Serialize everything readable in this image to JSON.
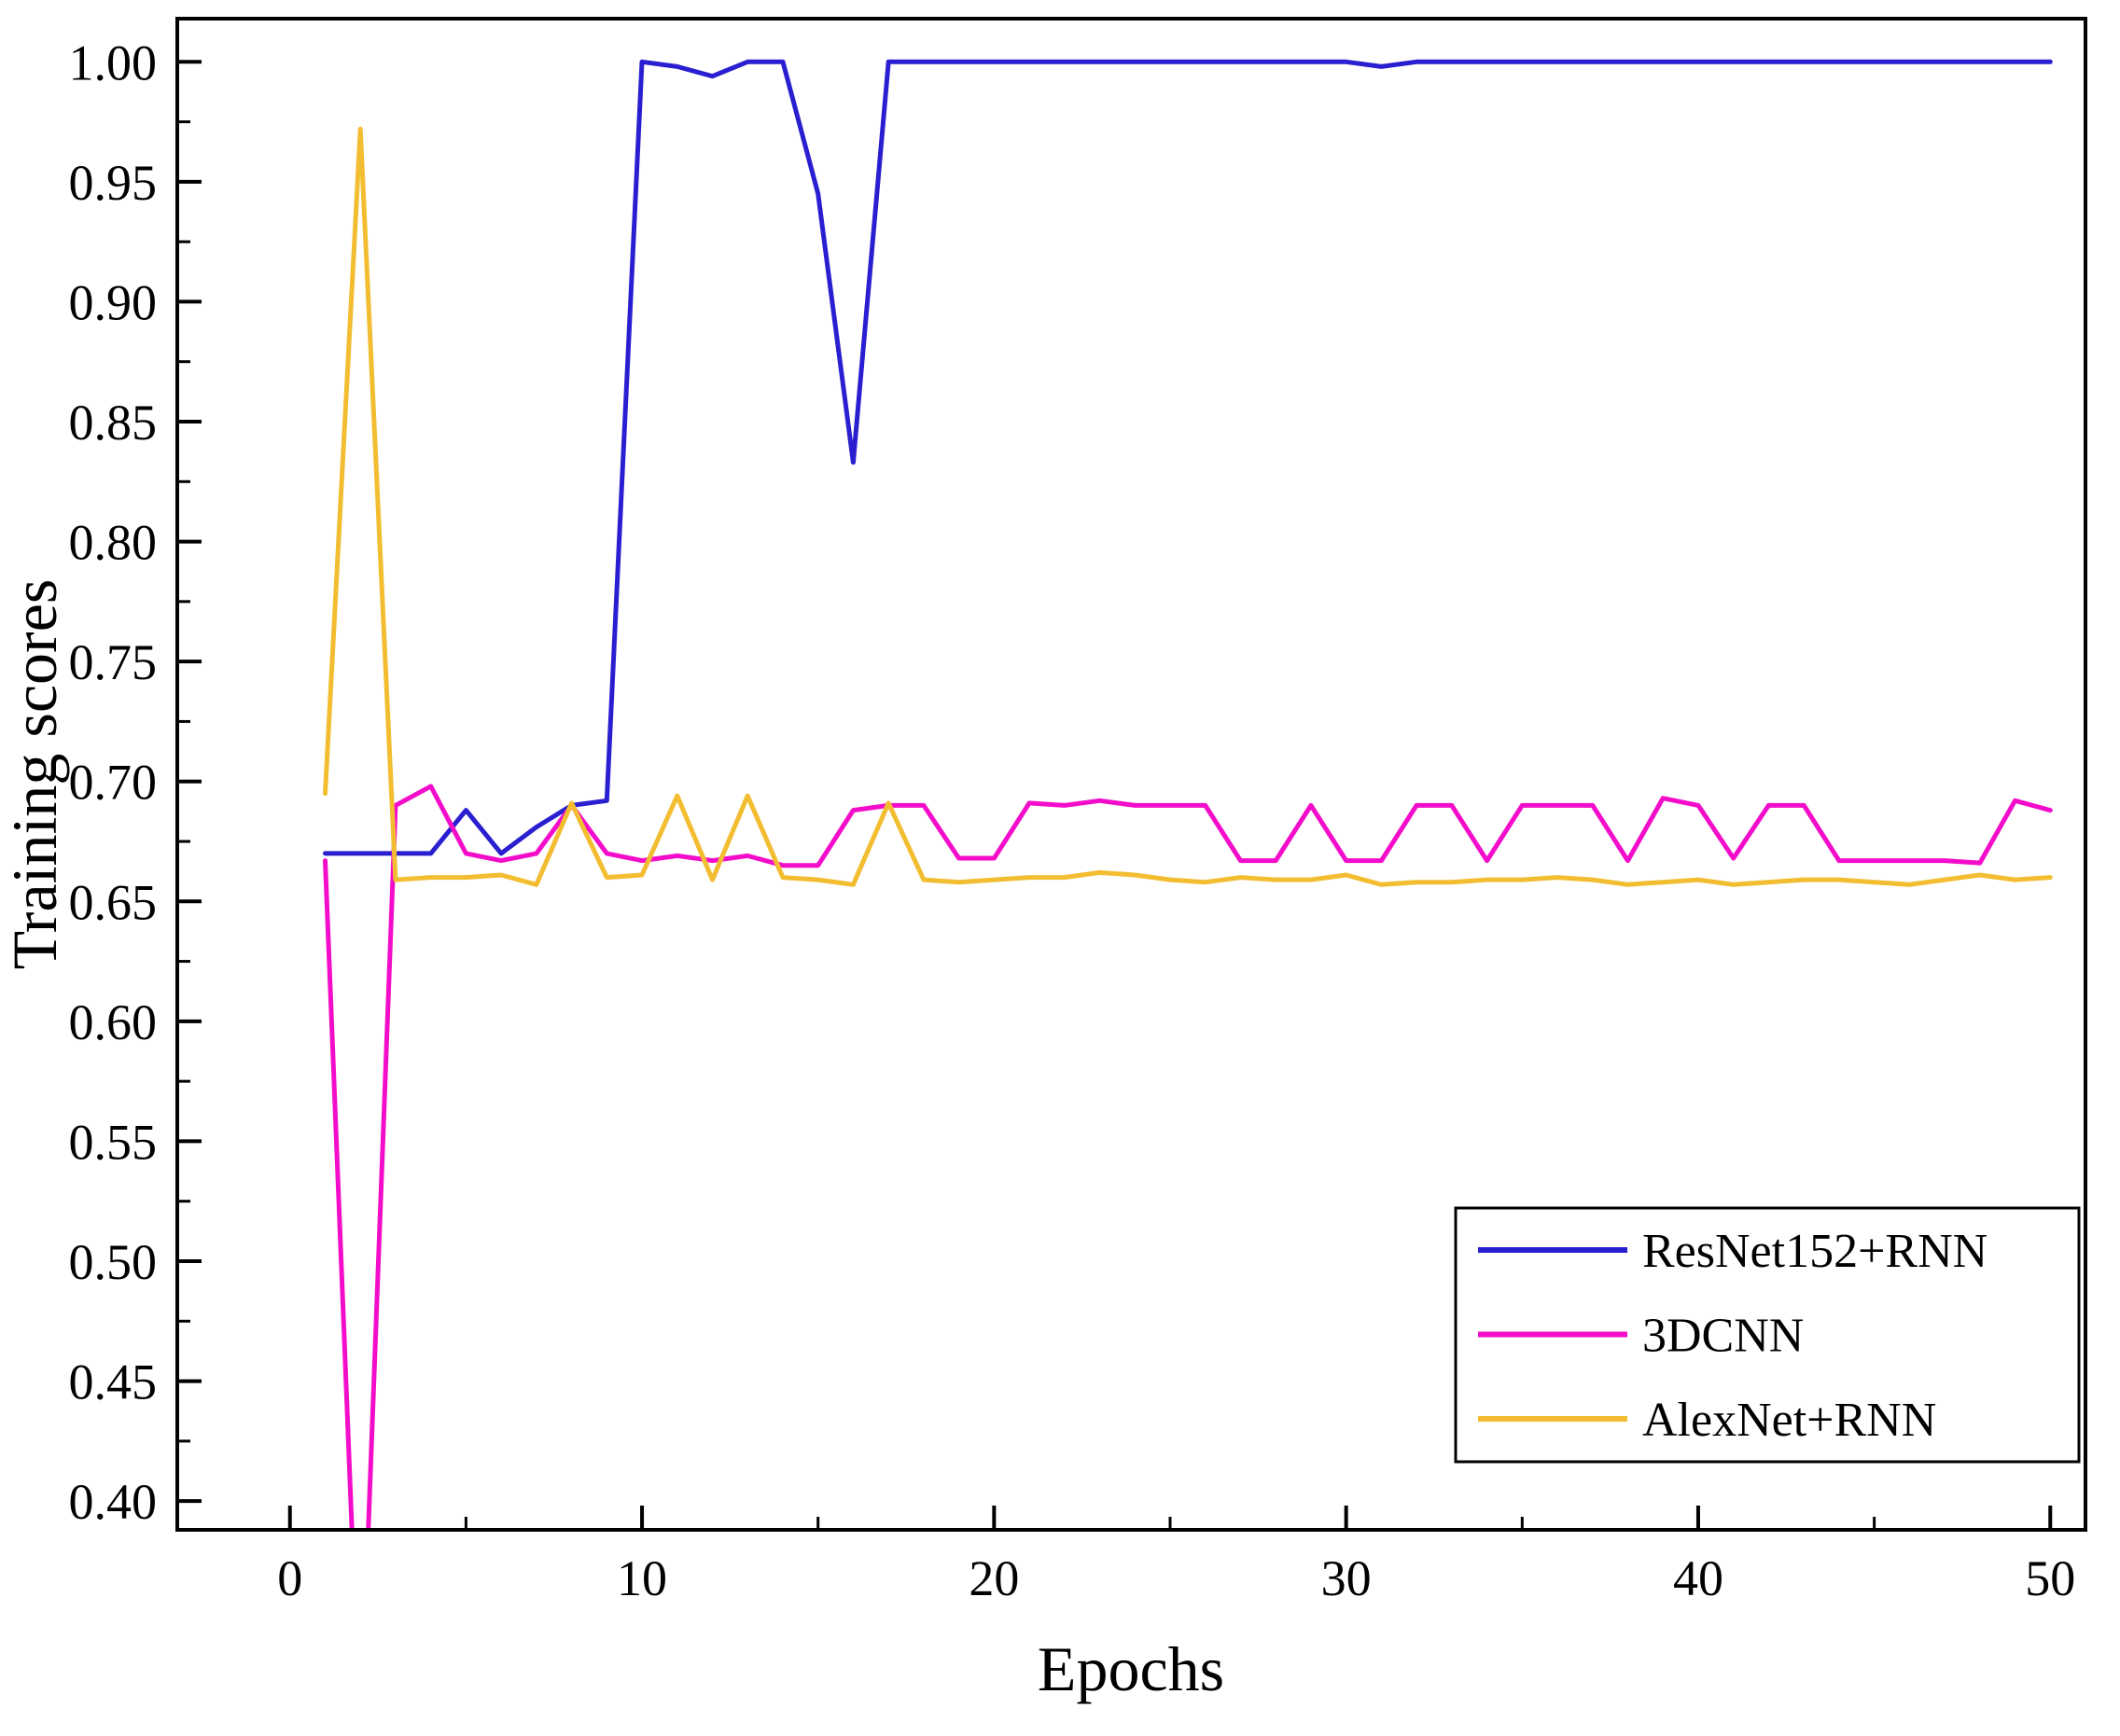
{
  "figure": {
    "background": "#ffffff",
    "axis_color": "#000000"
  },
  "chart_data": {
    "type": "line",
    "title": "",
    "xlabel": "Epochs",
    "ylabel": "Training scores",
    "xlim": [
      -3.2,
      51
    ],
    "ylim": [
      0.388,
      1.018
    ],
    "x_ticks": [
      0,
      10,
      20,
      30,
      40,
      50
    ],
    "x_minor_ticks": [
      5,
      15,
      25,
      35,
      45
    ],
    "y_ticks": [
      0.4,
      0.45,
      0.5,
      0.55,
      0.6,
      0.65,
      0.7,
      0.75,
      0.8,
      0.85,
      0.9,
      0.95,
      1.0
    ],
    "y_minor_ticks": [
      0.425,
      0.475,
      0.525,
      0.575,
      0.625,
      0.675,
      0.725,
      0.775,
      0.825,
      0.875,
      0.925,
      0.975
    ],
    "grid": false,
    "legend_position": "bottom-right",
    "x": [
      1,
      2,
      3,
      4,
      5,
      6,
      7,
      8,
      9,
      10,
      11,
      12,
      13,
      14,
      15,
      16,
      17,
      18,
      19,
      20,
      21,
      22,
      23,
      24,
      25,
      26,
      27,
      28,
      29,
      30,
      31,
      32,
      33,
      34,
      35,
      36,
      37,
      38,
      39,
      40,
      41,
      42,
      43,
      44,
      45,
      46,
      47,
      48,
      49,
      50
    ],
    "series": [
      {
        "name": "ResNet152+RNN",
        "color": "#2a1fd0",
        "values": [
          0.67,
          0.67,
          0.67,
          0.67,
          0.688,
          0.67,
          0.681,
          0.69,
          0.692,
          1.0,
          0.998,
          0.994,
          1.0,
          1.0,
          0.945,
          0.833,
          1.0,
          1.0,
          1.0,
          1.0,
          1.0,
          1.0,
          1.0,
          1.0,
          1.0,
          1.0,
          1.0,
          1.0,
          1.0,
          1.0,
          0.998,
          1.0,
          1.0,
          1.0,
          1.0,
          1.0,
          1.0,
          1.0,
          1.0,
          1.0,
          1.0,
          1.0,
          1.0,
          1.0,
          1.0,
          1.0,
          1.0,
          1.0,
          1.0,
          1.0
        ]
      },
      {
        "name": "3DCNN",
        "color": "#f30dca",
        "values": [
          0.667,
          0.3,
          0.69,
          0.698,
          0.67,
          0.667,
          0.67,
          0.69,
          0.67,
          0.667,
          0.669,
          0.667,
          0.669,
          0.665,
          0.665,
          0.688,
          0.69,
          0.69,
          0.668,
          0.668,
          0.691,
          0.69,
          0.692,
          0.69,
          0.69,
          0.69,
          0.667,
          0.667,
          0.69,
          0.667,
          0.667,
          0.69,
          0.69,
          0.667,
          0.69,
          0.69,
          0.69,
          0.667,
          0.693,
          0.69,
          0.668,
          0.69,
          0.69,
          0.667,
          0.667,
          0.667,
          0.667,
          0.666,
          0.692,
          0.688
        ]
      },
      {
        "name": "AlexNet+RNN",
        "color": "#f3bd31",
        "values": [
          0.695,
          0.972,
          0.659,
          0.66,
          0.66,
          0.661,
          0.657,
          0.691,
          0.66,
          0.661,
          0.694,
          0.659,
          0.694,
          0.66,
          0.659,
          0.657,
          0.691,
          0.659,
          0.658,
          0.659,
          0.66,
          0.66,
          0.662,
          0.661,
          0.659,
          0.658,
          0.66,
          0.659,
          0.659,
          0.661,
          0.657,
          0.658,
          0.658,
          0.659,
          0.659,
          0.66,
          0.659,
          0.657,
          0.658,
          0.659,
          0.657,
          0.658,
          0.659,
          0.659,
          0.658,
          0.657,
          0.659,
          0.661,
          0.659,
          0.66
        ]
      }
    ]
  }
}
